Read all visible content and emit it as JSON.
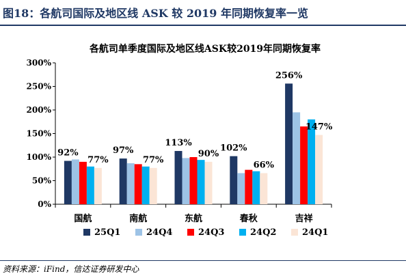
{
  "figure": {
    "title": "图18：各航司国际及地区线 ASK 较 2019 年同期恢复率一览",
    "source": "资料来源：iFind，信达证券研发中心"
  },
  "chart_data": {
    "type": "bar",
    "title": "各航司单季度国际及地区线ASK较2019年同期恢复率",
    "categories": [
      "国航",
      "南航",
      "东航",
      "春秋",
      "吉祥"
    ],
    "ylim": [
      0,
      300
    ],
    "yticks": [
      0,
      50,
      100,
      150,
      200,
      250,
      300
    ],
    "ytick_labels": [
      "0%",
      "50%",
      "100%",
      "150%",
      "200%",
      "250%",
      "300%"
    ],
    "grid": false,
    "legend_position": "bottom",
    "series": [
      {
        "name": "25Q1",
        "color": "#1f3864",
        "values": [
          92,
          97,
          113,
          102,
          256
        ]
      },
      {
        "name": "24Q4",
        "color": "#9dc3e6",
        "values": [
          95,
          87,
          98,
          66,
          195
        ]
      },
      {
        "name": "24Q3",
        "color": "#ff0000",
        "values": [
          90,
          85,
          100,
          73,
          165
        ]
      },
      {
        "name": "24Q2",
        "color": "#00b0f0",
        "values": [
          80,
          80,
          94,
          70,
          180
        ]
      },
      {
        "name": "24Q1",
        "color": "#fbe5d6",
        "values": [
          77,
          77,
          90,
          66,
          147
        ]
      }
    ],
    "data_labels": [
      {
        "category": 0,
        "series": 0,
        "text": "92%"
      },
      {
        "category": 0,
        "series": 4,
        "text": "77%"
      },
      {
        "category": 1,
        "series": 0,
        "text": "97%"
      },
      {
        "category": 1,
        "series": 4,
        "text": "77%"
      },
      {
        "category": 2,
        "series": 0,
        "text": "113%"
      },
      {
        "category": 2,
        "series": 4,
        "text": "90%"
      },
      {
        "category": 3,
        "series": 0,
        "text": "102%"
      },
      {
        "category": 3,
        "series": 4,
        "text": "66%"
      },
      {
        "category": 4,
        "series": 0,
        "text": "256%"
      },
      {
        "category": 4,
        "series": 4,
        "text": "147%"
      }
    ]
  }
}
